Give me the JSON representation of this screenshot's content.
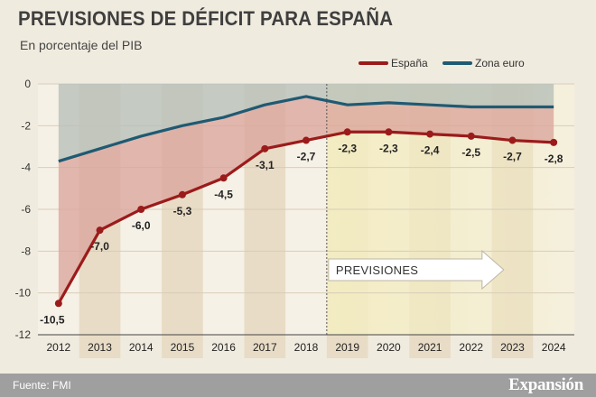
{
  "header": {
    "title": "PREVISIONES DE DÉFICIT PARA ESPAÑA",
    "subtitle": "En porcentaje del PIB"
  },
  "footer": {
    "source": "Fuente: FMI",
    "brand": "Expansión"
  },
  "colors": {
    "spain": "#9b1b1b",
    "euro": "#1f5a73",
    "spain_fill": "#dba59c",
    "euro_fill": "#b9c1b9",
    "forecast_fill": "#f3ecc2",
    "band": "#e8dcc6"
  },
  "chart_data": {
    "type": "line",
    "title": "PREVISIONES DE DÉFICIT PARA ESPAÑA",
    "subtitle": "En porcentaje del PIB",
    "categories": [
      "2012",
      "2013",
      "2014",
      "2015",
      "2016",
      "2017",
      "2018",
      "2019",
      "2020",
      "2021",
      "2022",
      "2023",
      "2024"
    ],
    "series": [
      {
        "name": "España",
        "values": [
          -10.5,
          -7.0,
          -6.0,
          -5.3,
          -4.5,
          -3.1,
          -2.7,
          -2.3,
          -2.3,
          -2.4,
          -2.5,
          -2.7,
          -2.8
        ],
        "labels": [
          "-10,5",
          "-7,0",
          "-6,0",
          "-5,3",
          "-4,5",
          "-3,1",
          "-2,7",
          "-2,3",
          "-2,3",
          "-2,4",
          "-2,5",
          "-2,7",
          "-2,8"
        ]
      },
      {
        "name": "Zona euro",
        "values": [
          -3.7,
          -3.1,
          -2.5,
          -2.0,
          -1.6,
          -1.0,
          -0.6,
          -1.0,
          -0.9,
          -1.0,
          -1.1,
          -1.1,
          -1.1
        ]
      }
    ],
    "ylim": [
      -12,
      0
    ],
    "yticks": [
      0,
      -2,
      -4,
      -6,
      -8,
      -10,
      -12
    ],
    "ytick_labels": [
      "0",
      "-2",
      "-4",
      "-6",
      "-8",
      "-10",
      "-12"
    ],
    "forecast_start": "2019",
    "annotation": "PREVISIONES",
    "legend_position": "top-right",
    "xlabel": "",
    "ylabel": ""
  }
}
